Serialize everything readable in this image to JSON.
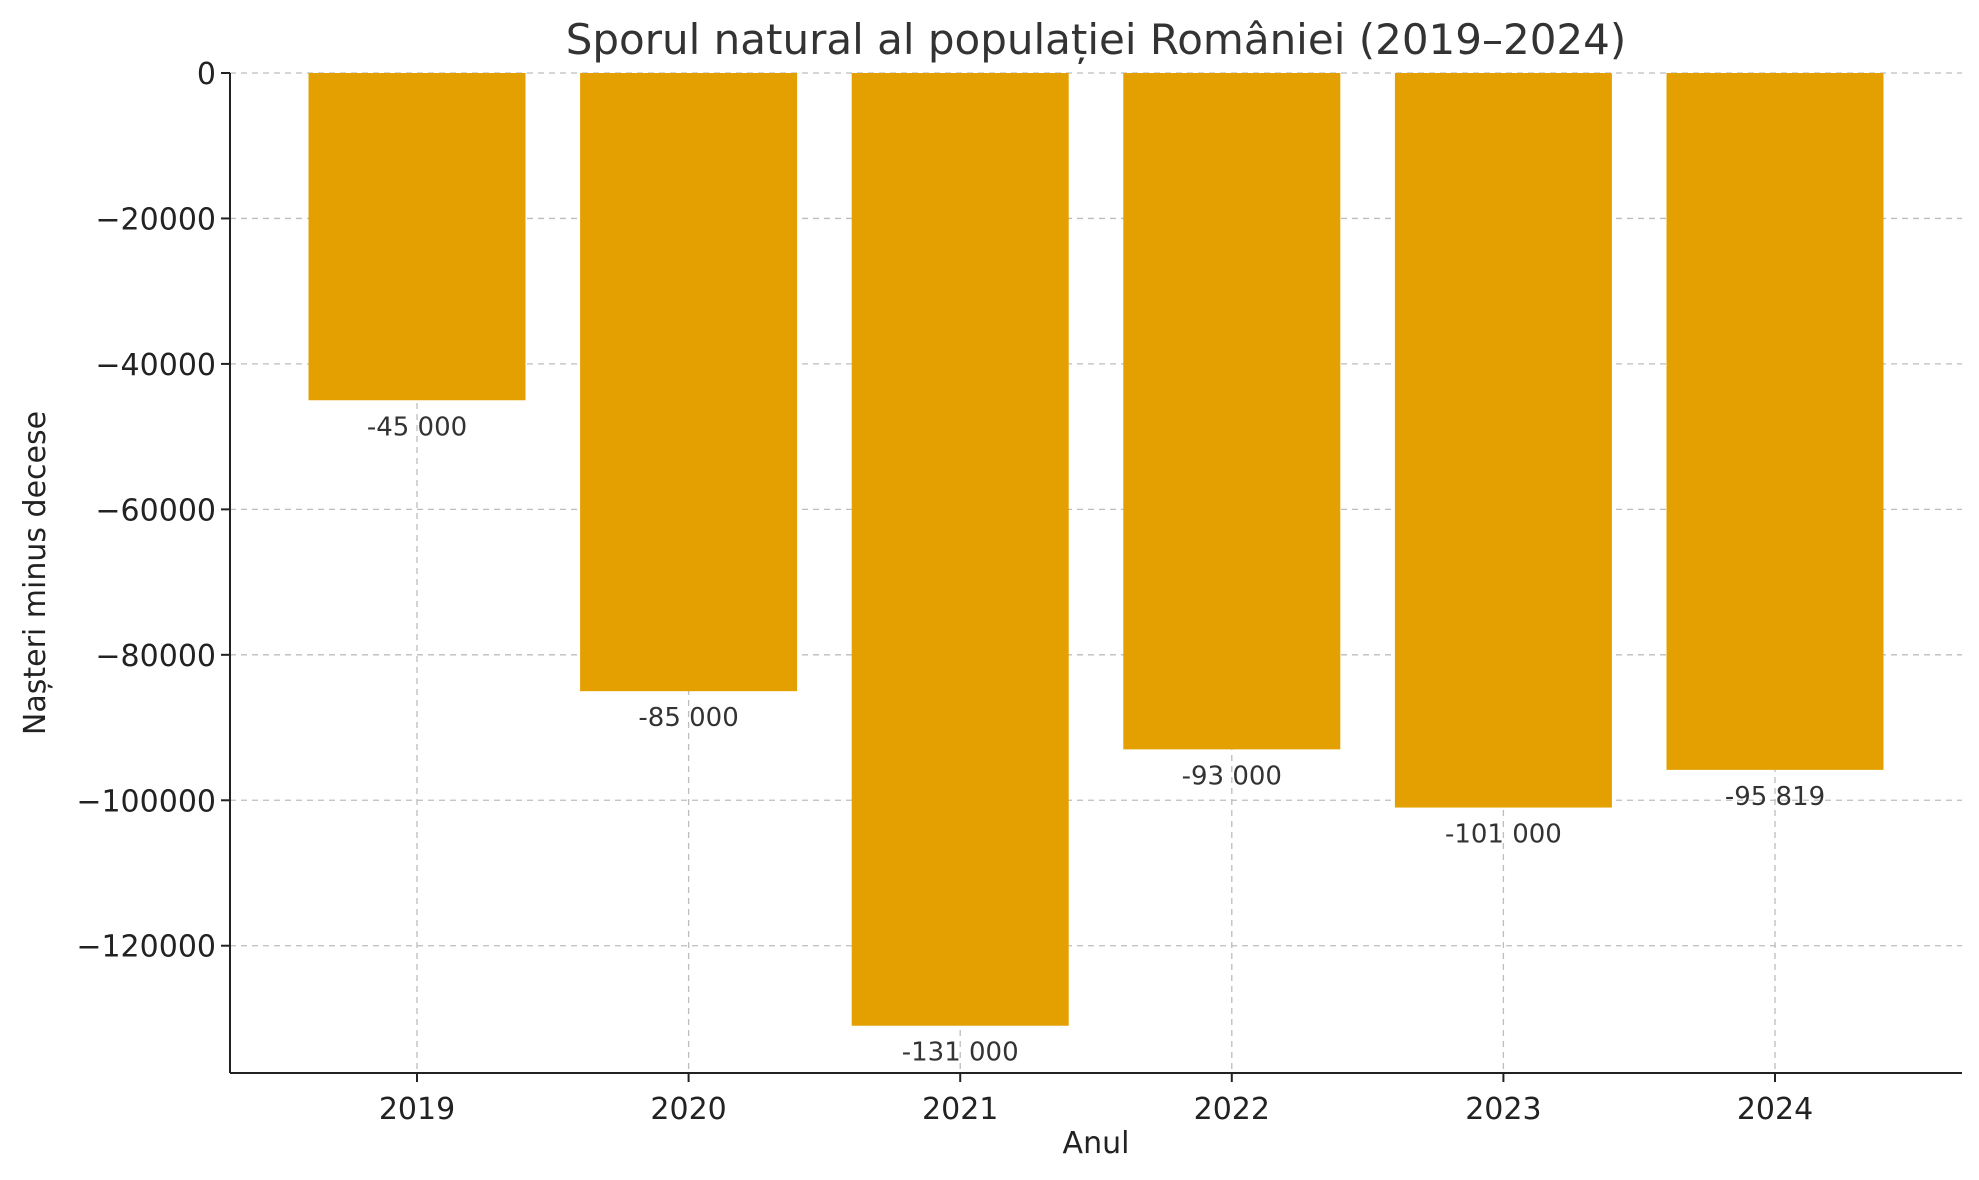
{
  "chart_data": {
    "type": "bar",
    "title": "Sporul natural al populației României (2019–2024)",
    "xlabel": "Anul",
    "ylabel": "Nașteri minus decese",
    "categories": [
      "2019",
      "2020",
      "2021",
      "2022",
      "2023",
      "2024"
    ],
    "values": [
      -45000,
      -85000,
      -131000,
      -93000,
      -101000,
      -95819
    ],
    "data_labels": [
      "-45 000",
      "-85 000",
      "-131 000",
      "-93 000",
      "-101 000",
      "-95 819"
    ],
    "y_ticks": [
      0,
      -20000,
      -40000,
      -60000,
      -80000,
      -100000,
      -120000
    ],
    "y_tick_labels": [
      "0",
      "−20000",
      "−40000",
      "−60000",
      "−80000",
      "−100000",
      "−120000"
    ],
    "ylim": [
      -137500,
      0
    ],
    "grid": true,
    "bar_color": "#E3A000"
  }
}
